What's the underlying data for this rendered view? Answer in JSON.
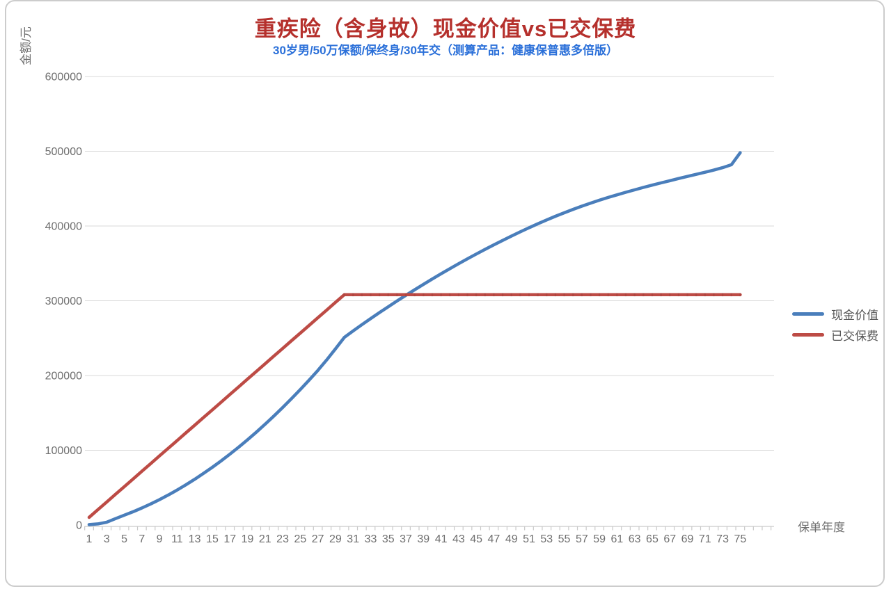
{
  "chart_data": {
    "type": "line",
    "title": "重疾险（含身故）现金价值vs已交保费",
    "subtitle": "30岁男/50万保额/保终身/30年交（测算产品：健康保普惠多倍版）",
    "title_color": "#b5302c",
    "subtitle_color": "#2b70d9",
    "xlabel": "保单年度",
    "ylabel": "金额/元",
    "ylim": [
      0,
      600000
    ],
    "yticks": [
      0,
      100000,
      200000,
      300000,
      400000,
      500000,
      600000
    ],
    "xtick_labels": [
      1,
      3,
      5,
      7,
      9,
      11,
      13,
      15,
      17,
      19,
      21,
      23,
      25,
      27,
      29,
      31,
      33,
      35,
      37,
      39,
      41,
      43,
      45,
      47,
      49,
      51,
      53,
      55,
      57,
      59,
      61,
      63,
      65,
      67,
      69,
      71,
      73,
      75
    ],
    "grid": "horizontal",
    "legend_position": "right",
    "x": [
      1,
      2,
      3,
      4,
      5,
      6,
      7,
      8,
      9,
      10,
      11,
      12,
      13,
      14,
      15,
      16,
      17,
      18,
      19,
      20,
      21,
      22,
      23,
      24,
      25,
      26,
      27,
      28,
      29,
      30,
      31,
      32,
      33,
      34,
      35,
      36,
      37,
      38,
      39,
      40,
      41,
      42,
      43,
      44,
      45,
      46,
      47,
      48,
      49,
      50,
      51,
      52,
      53,
      54,
      55,
      56,
      57,
      58,
      59,
      60,
      61,
      62,
      63,
      64,
      65,
      66,
      67,
      68,
      69,
      70,
      71,
      72,
      73,
      74,
      75
    ],
    "series": [
      {
        "name": "现金价值",
        "color": "#4a7ebb",
        "values": [
          600,
          1500,
          3800,
          8600,
          13200,
          17800,
          22800,
          28200,
          34000,
          40200,
          46800,
          53800,
          61200,
          69000,
          77200,
          85800,
          94800,
          104200,
          114000,
          124200,
          134800,
          145800,
          157200,
          169000,
          181200,
          193800,
          206800,
          220800,
          235600,
          251000,
          259600,
          268000,
          276200,
          284200,
          292000,
          299700,
          307300,
          314700,
          322000,
          329100,
          336100,
          342900,
          349600,
          356100,
          362500,
          368700,
          374800,
          380700,
          386500,
          392200,
          397700,
          403000,
          408100,
          413000,
          417700,
          422200,
          426500,
          430600,
          434500,
          438200,
          441700,
          445100,
          448400,
          451600,
          454700,
          457700,
          460600,
          463500,
          466300,
          469100,
          471900,
          474800,
          478000,
          482000,
          498000
        ]
      },
      {
        "name": "已交保费",
        "color": "#bd4b45",
        "values": [
          10270,
          20540,
          30810,
          41080,
          51350,
          61620,
          71890,
          82160,
          92430,
          102700,
          112970,
          123240,
          133510,
          143780,
          154050,
          164320,
          174590,
          184860,
          195130,
          205400,
          215670,
          225940,
          236210,
          246480,
          256750,
          267020,
          277290,
          287560,
          297830,
          308100,
          308100,
          308100,
          308100,
          308100,
          308100,
          308100,
          308100,
          308100,
          308100,
          308100,
          308100,
          308100,
          308100,
          308100,
          308100,
          308100,
          308100,
          308100,
          308100,
          308100,
          308100,
          308100,
          308100,
          308100,
          308100,
          308100,
          308100,
          308100,
          308100,
          308100,
          308100,
          308100,
          308100,
          308100,
          308100,
          308100,
          308100,
          308100,
          308100,
          308100,
          308100,
          308100,
          308100,
          308100,
          308100
        ]
      }
    ]
  }
}
